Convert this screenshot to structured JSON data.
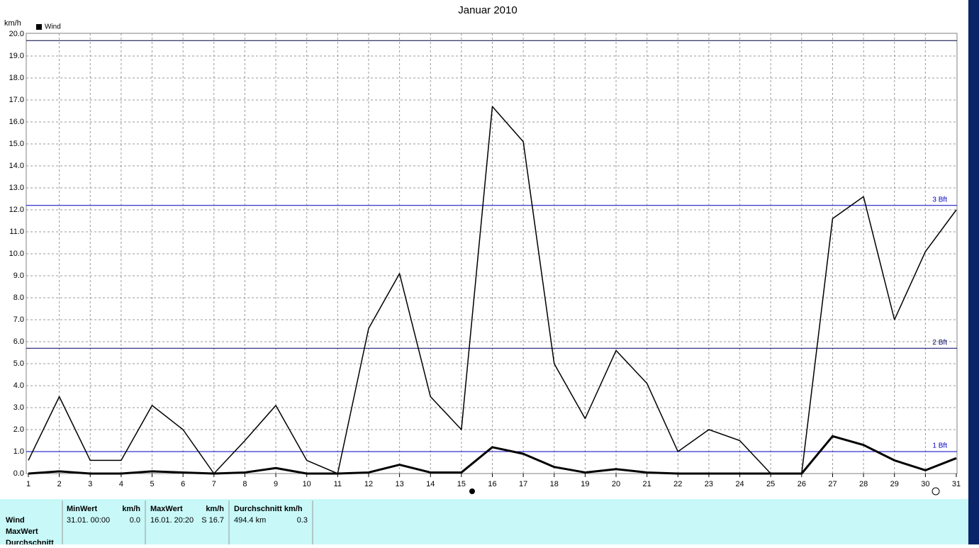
{
  "chart_data": {
    "type": "line",
    "title": "Januar 2010",
    "y_unit": "km/h",
    "x": [
      1,
      2,
      3,
      4,
      5,
      6,
      7,
      8,
      9,
      10,
      11,
      12,
      13,
      14,
      15,
      16,
      17,
      18,
      19,
      20,
      21,
      22,
      23,
      24,
      25,
      26,
      27,
      28,
      29,
      30,
      31
    ],
    "xlim": [
      1,
      31
    ],
    "series": [
      {
        "name": "Wind",
        "color": "#000000",
        "width": 1.5,
        "values": [
          0.6,
          3.5,
          0.6,
          0.6,
          3.1,
          2.0,
          0,
          1.5,
          3.1,
          0.6,
          0,
          6.6,
          9.1,
          3.5,
          2.0,
          16.7,
          15.1,
          5.0,
          2.5,
          5.6,
          4.1,
          1.0,
          2.0,
          1.5,
          0,
          0,
          11.6,
          12.6,
          7.0,
          10.1,
          12.0
        ]
      },
      {
        "color": "#000000",
        "width": 3,
        "values": [
          0,
          0.1,
          0,
          0,
          0.1,
          0.05,
          0,
          0.05,
          0.25,
          0,
          0,
          0.05,
          0.4,
          0.05,
          0.05,
          1.2,
          0.9,
          0.3,
          0.05,
          0.2,
          0.05,
          0,
          0,
          0,
          0,
          0,
          1.7,
          1.3,
          0.6,
          0.15,
          0.7
        ]
      }
    ],
    "reference_lines": [
      {
        "value": 1.0,
        "label": "1 Bft",
        "color": "#0000c0"
      },
      {
        "value": 5.7,
        "label": "2 Bft",
        "color": "#000060"
      },
      {
        "value": 12.2,
        "label": "3 Bft",
        "color": "#0000c0"
      },
      {
        "value": 19.7,
        "color": "#000040"
      }
    ],
    "ylim": [
      0,
      20
    ],
    "yticks": [
      {
        "value": 0,
        "label": "0.0"
      },
      {
        "value": 1,
        "label": "1.0"
      },
      {
        "value": 2,
        "label": "2.0"
      },
      {
        "value": 3,
        "label": "3.0"
      },
      {
        "value": 4,
        "label": "4.0"
      },
      {
        "value": 5,
        "label": "5.0"
      },
      {
        "value": 6,
        "label": "6.0"
      },
      {
        "value": 7,
        "label": "7.0"
      },
      {
        "value": 8,
        "label": "8.0"
      },
      {
        "value": 9,
        "label": "9.0"
      },
      {
        "value": 10,
        "label": "10.0"
      },
      {
        "value": 11,
        "label": "11.0"
      },
      {
        "value": 12,
        "label": "12.0"
      },
      {
        "value": 13,
        "label": "13.0"
      },
      {
        "value": 14,
        "label": "14.0"
      },
      {
        "value": 15,
        "label": "15.0"
      },
      {
        "value": 16,
        "label": "16.0"
      },
      {
        "value": 17,
        "label": "17.0"
      },
      {
        "value": 18,
        "label": "18.0"
      },
      {
        "value": 19,
        "label": "19.0"
      },
      {
        "value": 20,
        "label": "20.0"
      }
    ],
    "grid": true
  },
  "stats_table": {
    "row_headers": [
      "Wind",
      "MaxWert",
      "Durchschnitt"
    ],
    "min": {
      "title": "MinWert",
      "unit": "km/h",
      "time": "31.01.  00:00",
      "value": "0.0"
    },
    "max": {
      "title": "MaxWert",
      "unit": "km/h",
      "time": "16.01.  20:20",
      "value": "S 16.7"
    },
    "avg": {
      "title": "Durchschnitt km/h",
      "distance": "494.4 km",
      "value": "0.3"
    }
  }
}
